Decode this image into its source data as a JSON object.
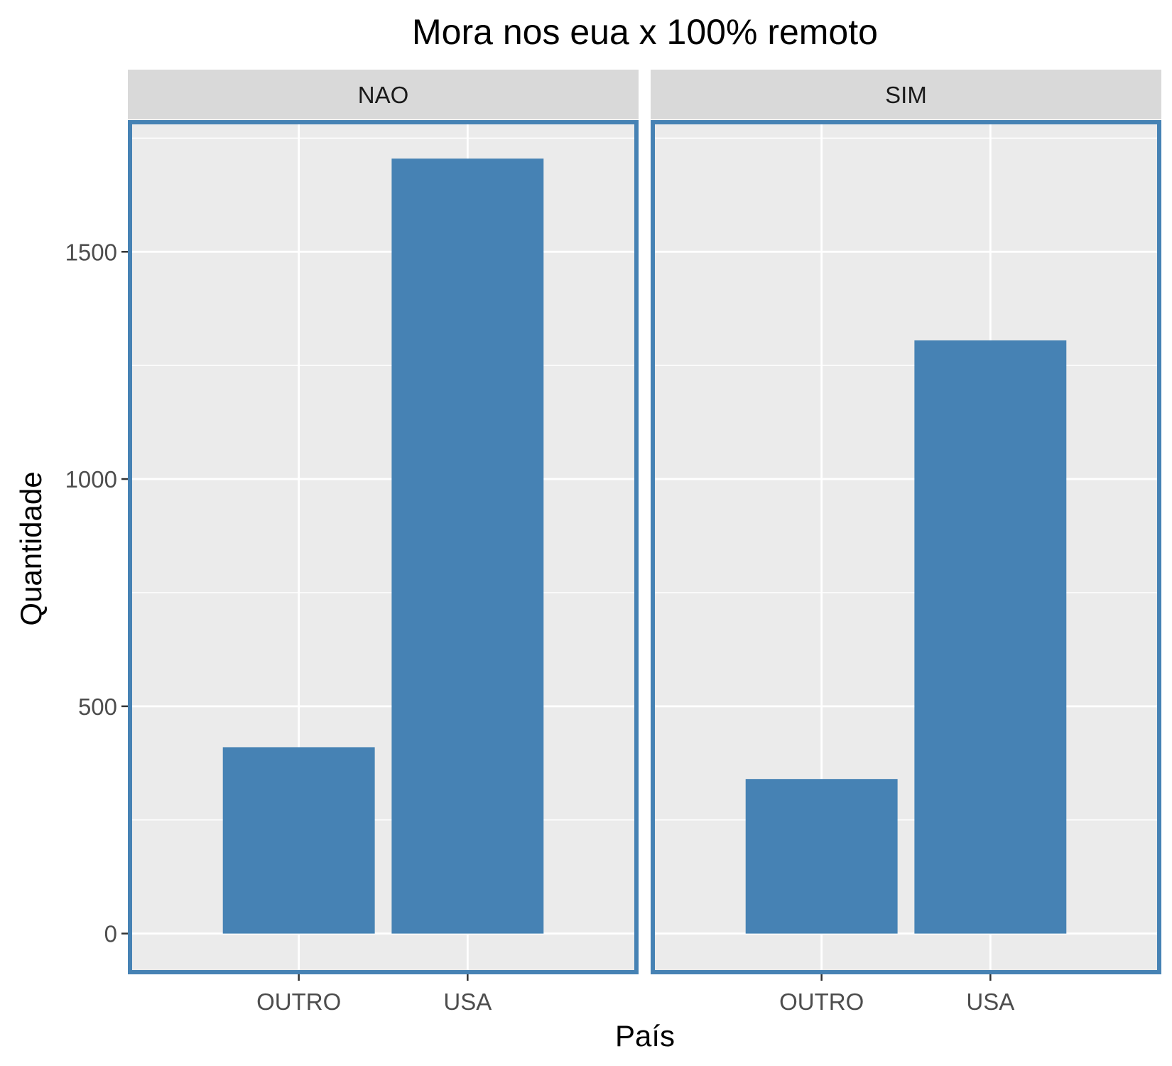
{
  "chart_data": {
    "type": "bar",
    "title": "Mora nos eua x 100% remoto",
    "xlabel": "País",
    "ylabel": "Quantidade",
    "categories": [
      "OUTRO",
      "USA"
    ],
    "ylim": [
      -85,
      1785
    ],
    "yticks": [
      0,
      500,
      1000,
      1500
    ],
    "grid": true,
    "facets": [
      {
        "label": "NAO",
        "values": [
          410,
          1705
        ]
      },
      {
        "label": "SIM",
        "values": [
          340,
          1305
        ]
      }
    ],
    "colors": {
      "bar": "#4682b4",
      "panel_border": "#4682b4",
      "panel_background": "#ebebeb",
      "strip_background": "#d9d9d9",
      "grid": "#ffffff"
    }
  }
}
